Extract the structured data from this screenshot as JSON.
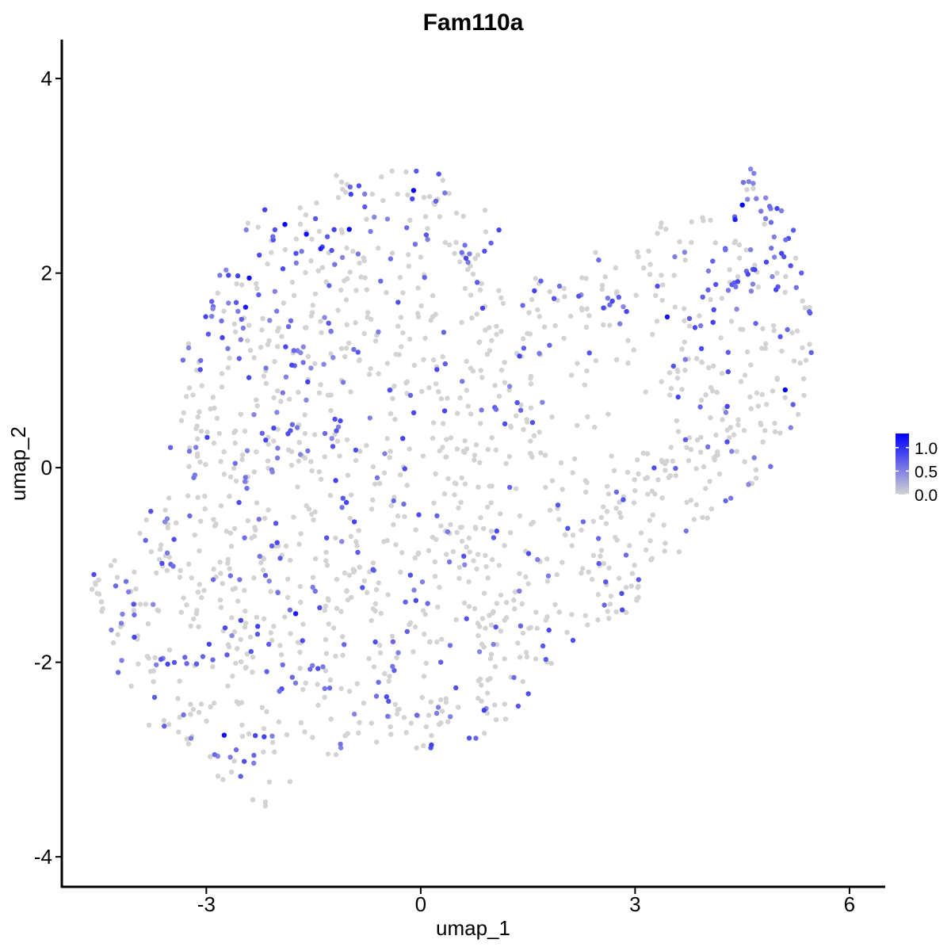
{
  "chart_data": {
    "type": "scatter",
    "title": "Fam110a",
    "xlabel": "umap_1",
    "ylabel": "umap_2",
    "xlim": [
      -5.0,
      6.5
    ],
    "ylim": [
      -4.3,
      4.4
    ],
    "xticks": [
      -3,
      0,
      3,
      6
    ],
    "xtick_labels": [
      "-3",
      "0",
      "3",
      "6"
    ],
    "yticks": [
      -4,
      -2,
      0,
      2,
      4
    ],
    "ytick_labels": [
      "-4",
      "-2",
      "0",
      "2",
      "4"
    ],
    "grid": false,
    "legend_placement": "right",
    "color_scale": {
      "low_color": "#d3d3d3",
      "high_color": "#0000ff",
      "range": [
        0,
        1.3
      ],
      "ticks": [
        0.0,
        0.5,
        1.0
      ],
      "tick_labels": [
        "0.0",
        "0.5",
        "1.0"
      ]
    },
    "point_summary": {
      "approx_count": 1600,
      "note_expressed_fraction": 0.22
    },
    "highlight_points": [
      {
        "x": -0.1,
        "y": 2.85,
        "value": 1.3
      },
      {
        "x": -1.9,
        "y": 2.5,
        "value": 1.25
      },
      {
        "x": -1.6,
        "y": 2.4,
        "value": 1.2
      },
      {
        "x": -1.0,
        "y": 2.45,
        "value": 1.25
      },
      {
        "x": -1.4,
        "y": 2.25,
        "value": 1.1
      },
      {
        "x": -2.4,
        "y": 1.95,
        "value": 1.2
      },
      {
        "x": -2.45,
        "y": 1.65,
        "value": 1.15
      },
      {
        "x": 4.5,
        "y": 2.7,
        "value": 1.3
      },
      {
        "x": 4.4,
        "y": 2.55,
        "value": 1.1
      },
      {
        "x": 3.45,
        "y": 1.55,
        "value": 1.2
      },
      {
        "x": 5.1,
        "y": 0.8,
        "value": 1.3
      },
      {
        "x": -1.75,
        "y": -1.5,
        "value": 1.15
      },
      {
        "x": -2.75,
        "y": -2.75,
        "value": 1.2
      },
      {
        "x": 0.15,
        "y": -2.85,
        "value": 0.9
      },
      {
        "x": -0.25,
        "y": 0.3,
        "value": 0.9
      }
    ]
  }
}
